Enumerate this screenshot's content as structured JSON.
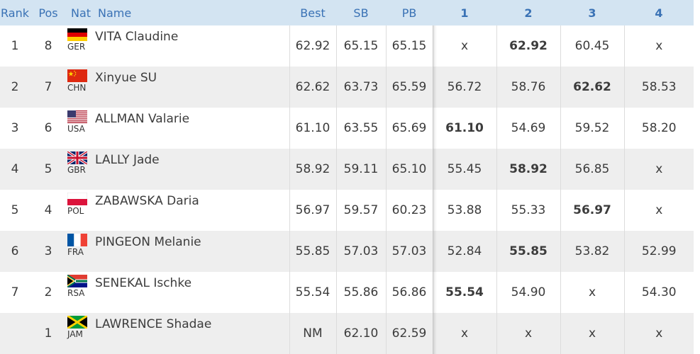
{
  "headers": {
    "rank": "Rank",
    "pos": "Pos",
    "nat": "Nat",
    "name": "Name",
    "best": "Best",
    "sb": "SB",
    "pb": "PB",
    "a1": "1",
    "a2": "2",
    "a3": "3",
    "a4": "4"
  },
  "rows": [
    {
      "rank": "1",
      "pos": "8",
      "nat": "GER",
      "flag": "germany-flag-icon",
      "name": "VITA Claudine",
      "best": "62.92",
      "sb": "65.15",
      "pb": "65.15",
      "a1": "x",
      "a2": "62.92",
      "a3": "60.45",
      "a4": "x",
      "best_attempt": 2
    },
    {
      "rank": "2",
      "pos": "7",
      "nat": "CHN",
      "flag": "china-flag-icon",
      "name": "Xinyue SU",
      "best": "62.62",
      "sb": "63.73",
      "pb": "65.59",
      "a1": "56.72",
      "a2": "58.76",
      "a3": "62.62",
      "a4": "58.53",
      "best_attempt": 3
    },
    {
      "rank": "3",
      "pos": "6",
      "nat": "USA",
      "flag": "usa-flag-icon",
      "name": "ALLMAN Valarie",
      "best": "61.10",
      "sb": "63.55",
      "pb": "65.69",
      "a1": "61.10",
      "a2": "54.69",
      "a3": "59.52",
      "a4": "58.20",
      "best_attempt": 1
    },
    {
      "rank": "4",
      "pos": "5",
      "nat": "GBR",
      "flag": "uk-flag-icon",
      "name": "LALLY Jade",
      "best": "58.92",
      "sb": "59.11",
      "pb": "65.10",
      "a1": "55.45",
      "a2": "58.92",
      "a3": "56.85",
      "a4": "x",
      "best_attempt": 2
    },
    {
      "rank": "5",
      "pos": "4",
      "nat": "POL",
      "flag": "poland-flag-icon",
      "name": "ZABAWSKA Daria",
      "best": "56.97",
      "sb": "59.57",
      "pb": "60.23",
      "a1": "53.88",
      "a2": "55.33",
      "a3": "56.97",
      "a4": "x",
      "best_attempt": 3
    },
    {
      "rank": "6",
      "pos": "3",
      "nat": "FRA",
      "flag": "france-flag-icon",
      "name": "PINGEON Melanie",
      "best": "55.85",
      "sb": "57.03",
      "pb": "57.03",
      "a1": "52.84",
      "a2": "55.85",
      "a3": "53.82",
      "a4": "52.99",
      "best_attempt": 2
    },
    {
      "rank": "7",
      "pos": "2",
      "nat": "RSA",
      "flag": "south-africa-flag-icon",
      "name": "SENEKAL Ischke",
      "best": "55.54",
      "sb": "55.86",
      "pb": "56.86",
      "a1": "55.54",
      "a2": "54.90",
      "a3": "x",
      "a4": "54.30",
      "best_attempt": 1
    },
    {
      "rank": "",
      "pos": "1",
      "nat": "JAM",
      "flag": "jamaica-flag-icon",
      "name": "LAWRENCE Shadae",
      "best": "NM",
      "sb": "62.10",
      "pb": "62.59",
      "a1": "x",
      "a2": "x",
      "a3": "x",
      "a4": "x",
      "best_attempt": 0
    }
  ],
  "colors": {
    "header_bg": "#d3e4f2",
    "header_text": "#3a72b5",
    "row_alt": "#eeeeee"
  }
}
